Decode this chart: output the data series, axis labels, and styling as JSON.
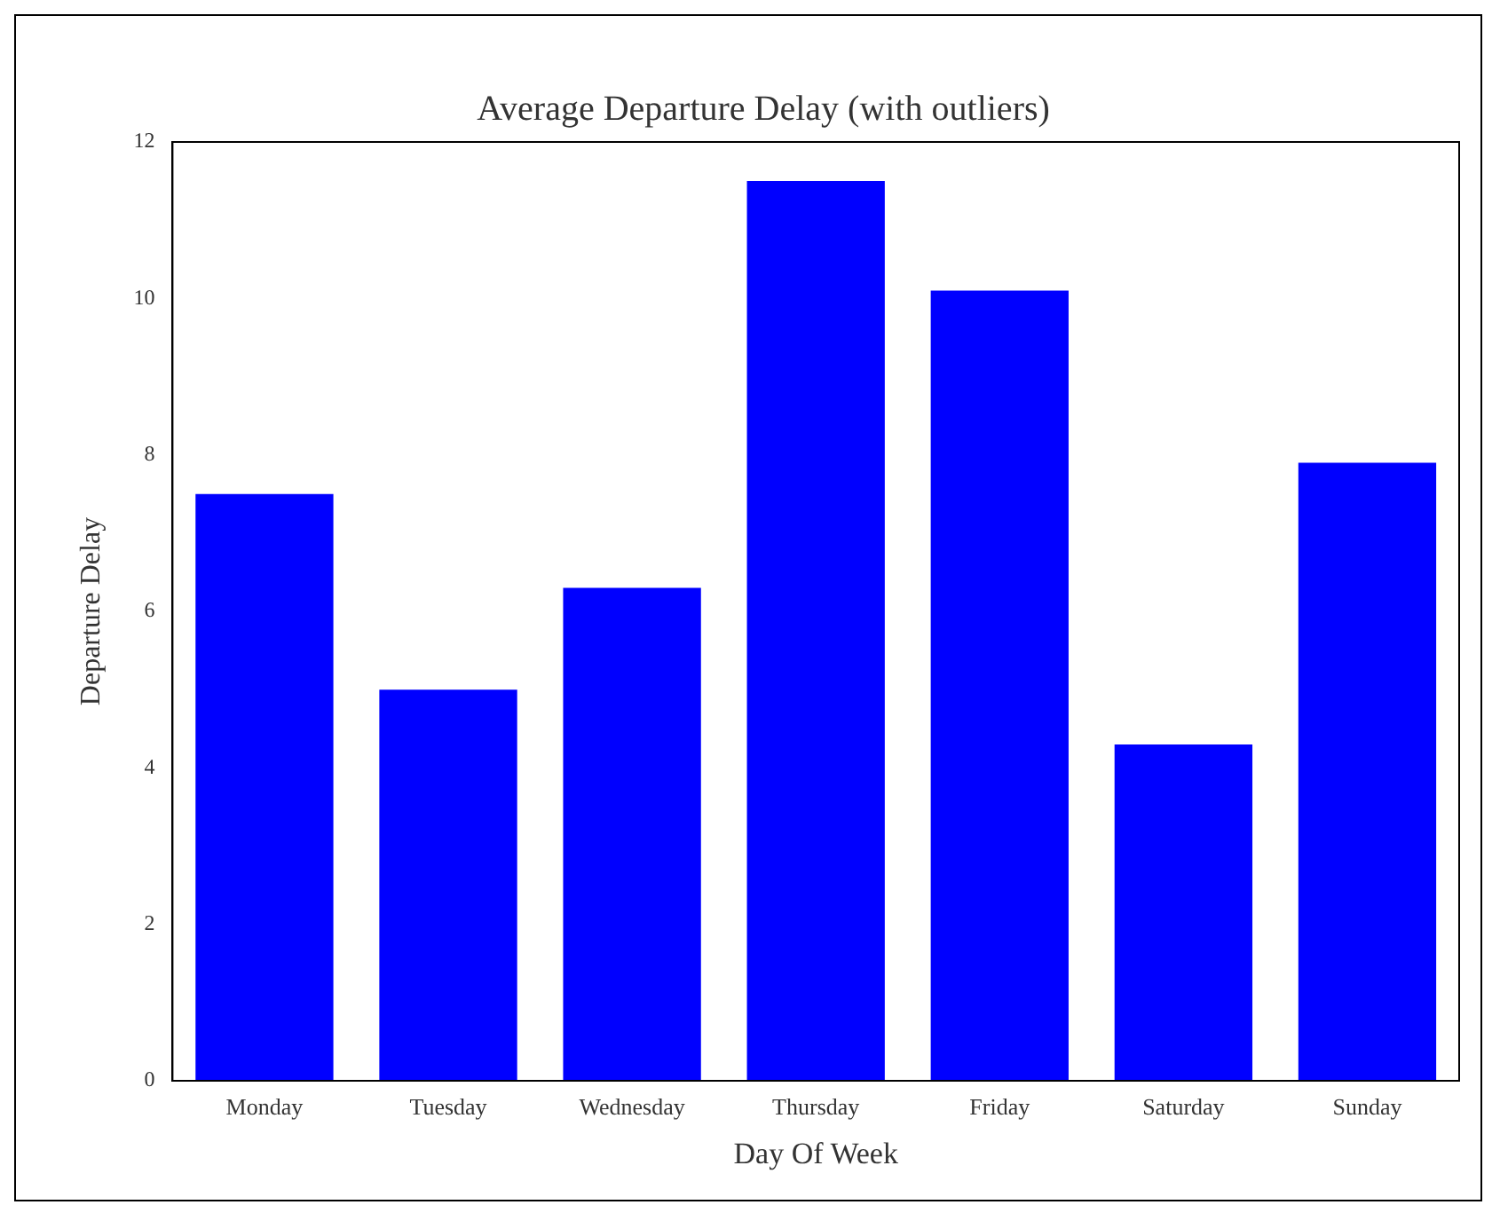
{
  "chart_data": {
    "type": "bar",
    "title": "Average Departure Delay (with outliers)",
    "xlabel": "Day Of Week",
    "ylabel": "Departure Delay",
    "categories": [
      "Monday",
      "Tuesday",
      "Wednesday",
      "Thursday",
      "Friday",
      "Saturday",
      "Sunday"
    ],
    "values": [
      7.5,
      5.0,
      6.3,
      11.5,
      10.1,
      4.3,
      7.9
    ],
    "color": "#0000ff",
    "ylim": [
      0,
      12
    ],
    "yticks": [
      0,
      2,
      4,
      6,
      8,
      10,
      12
    ],
    "grid": false,
    "legend": false
  }
}
